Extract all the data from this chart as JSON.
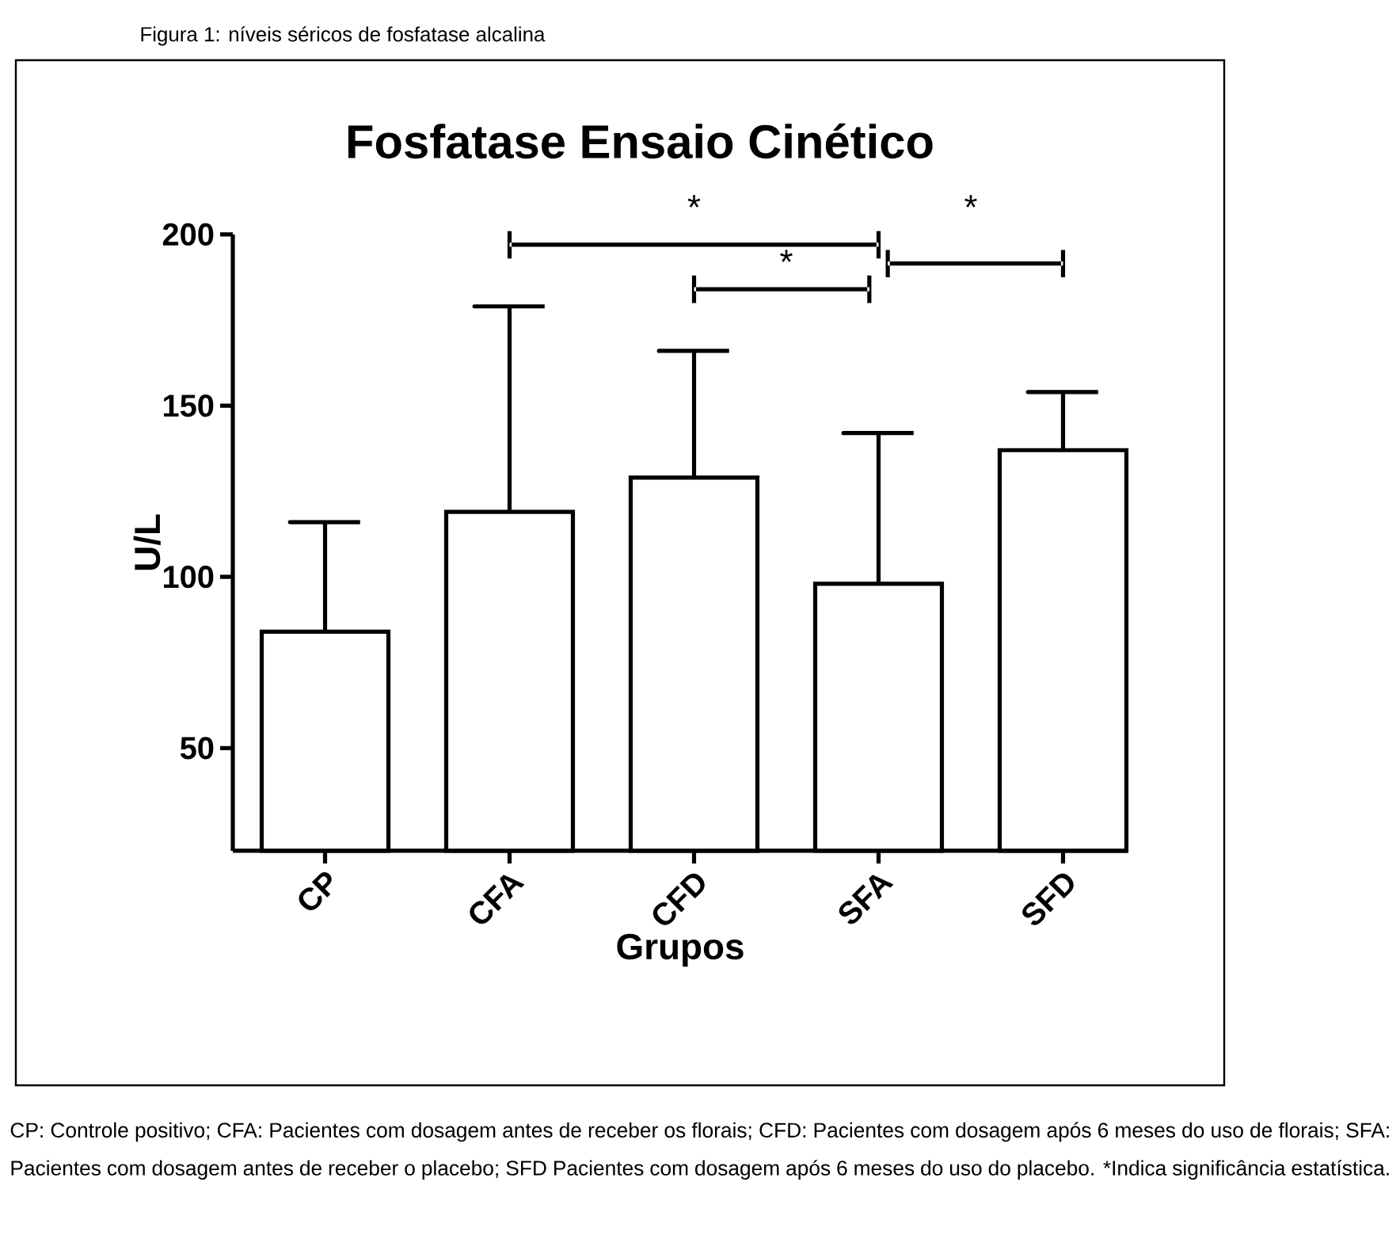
{
  "chart_data": {
    "type": "bar",
    "title": "Fosfatase Ensaio Cinético",
    "xlabel": "Grupos",
    "ylabel": "U/L",
    "categories": [
      "CP",
      "CFA",
      "CFD",
      "SFA",
      "SFD"
    ],
    "values": [
      84,
      119,
      129,
      98,
      137
    ],
    "errors": [
      [
        84,
        116
      ],
      [
        119,
        179
      ],
      [
        129,
        166
      ],
      [
        98,
        142
      ],
      [
        137,
        154
      ]
    ],
    "colors": [
      "#000000",
      "#000000",
      "#000000",
      "#000000",
      "#000000"
    ],
    "ylim": [
      20,
      200
    ],
    "yticks": [
      50,
      100,
      150,
      200
    ],
    "annotations": [
      "Figura 1: níveis séricos de fosfatase alcalina",
      "*",
      "*",
      "*",
      "CP: Controle positivo; CFA: Pacientes com dosagem antes de receber os florais; CFD: Pacientes com dosagem após 6 meses do uso de florais; SFA: Pacientes com dosagem antes de receber o placebo; SFD Pacientes com dosagem após 6 meses do uso do placebo. *Indica significância estatística."
    ]
  }
}
